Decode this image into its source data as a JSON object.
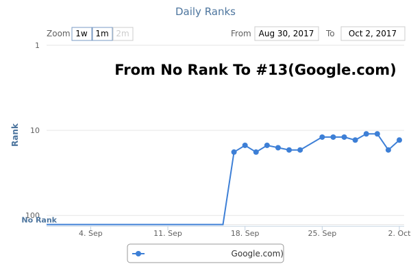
{
  "chart_data": {
    "type": "line",
    "title": "Daily Ranks",
    "annotation": "From No Rank To #13(Google.com)",
    "y_axis_label": "Rank",
    "log_y": true,
    "reversed_y": true,
    "grid": true,
    "x": [
      "2017-08-31",
      "2017-09-01",
      "2017-09-02",
      "2017-09-03",
      "2017-09-04",
      "2017-09-05",
      "2017-09-06",
      "2017-09-07",
      "2017-09-08",
      "2017-09-09",
      "2017-09-10",
      "2017-09-11",
      "2017-09-12",
      "2017-09-13",
      "2017-09-14",
      "2017-09-15",
      "2017-09-16",
      "2017-09-17",
      "2017-09-18",
      "2017-09-19",
      "2017-09-20",
      "2017-09-21",
      "2017-09-22",
      "2017-09-23",
      "2017-09-25",
      "2017-09-26",
      "2017-09-27",
      "2017-09-28",
      "2017-09-29",
      "2017-09-30",
      "2017-10-01",
      "2017-10-02"
    ],
    "series": [
      {
        "name": "Google.com)",
        "color": "#3d7fd6",
        "values": [
          128,
          128,
          128,
          128,
          128,
          128,
          128,
          128,
          128,
          128,
          128,
          128,
          128,
          128,
          128,
          128,
          128,
          18,
          15,
          18,
          15,
          16,
          17,
          17,
          12,
          12,
          12,
          13,
          11,
          11,
          17,
          13
        ]
      }
    ],
    "xlim": [
      "2017-08-31",
      "2017-10-02"
    ],
    "xticks": [
      {
        "value": "2017-09-04",
        "label": "4. Sep"
      },
      {
        "value": "2017-09-11",
        "label": "11. Sep"
      },
      {
        "value": "2017-09-18",
        "label": "18. Sep"
      },
      {
        "value": "2017-09-25",
        "label": "25. Sep"
      },
      {
        "value": "2017-10-02",
        "label": "2. Oct"
      }
    ],
    "ylim": [
      1,
      134
    ],
    "yticks": [
      1,
      10,
      100,
      {
        "value": 128,
        "label": "No Rank"
      }
    ]
  },
  "range_selector": {
    "zoom_label": "Zoom",
    "buttons": [
      "1w",
      "1m",
      "2m"
    ],
    "from_label": "From",
    "from": "Aug 30, 2017",
    "to_label": "To",
    "to": "Oct 2, 2017"
  }
}
